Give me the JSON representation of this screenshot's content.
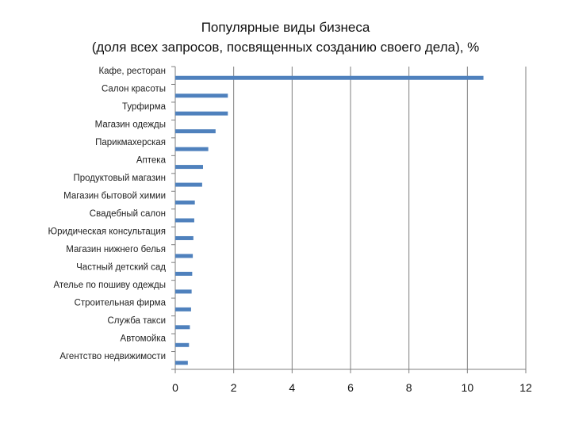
{
  "chart_data": {
    "type": "bar",
    "orientation": "horizontal",
    "title": "Популярные виды бизнеса",
    "subtitle": "(доля всех запросов, посвященных созданию своего дела), %",
    "xlabel": "",
    "ylabel": "",
    "xlim": [
      0,
      12
    ],
    "xticks": [
      "0",
      "2",
      "4",
      "6",
      "8",
      "10",
      "12"
    ],
    "grid": "vertical",
    "legend": "none",
    "bar_color": "#4f81bd",
    "categories": [
      "Кафе, ресторан",
      "Салон красоты",
      "Турфирма",
      "Магазин одежды",
      "Парикмахерская",
      "Аптека",
      "Продуктовый магазин",
      "Магазин бытовой химии",
      "Свадебный салон",
      "Юридическая консультация",
      "Магазин нижнего белья",
      "Частный детский сад",
      "Ателье по пошиву одежды",
      "Строительная фирма",
      "Служба такси",
      "Автомойка",
      "Агентство недвижимости"
    ],
    "values": [
      10.55,
      1.8,
      1.8,
      1.38,
      1.13,
      0.95,
      0.92,
      0.67,
      0.65,
      0.62,
      0.6,
      0.58,
      0.56,
      0.54,
      0.5,
      0.47,
      0.43
    ]
  }
}
